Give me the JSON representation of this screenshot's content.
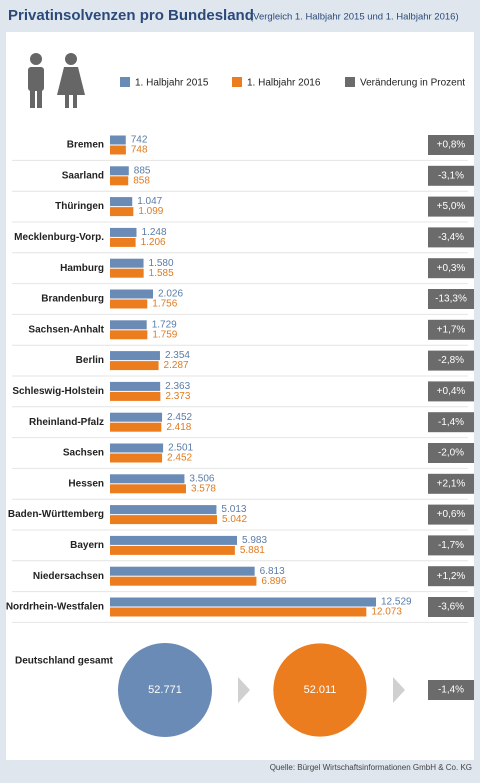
{
  "chart_data": {
    "type": "bar",
    "orientation": "horizontal",
    "title": "Privatinsolvenzen pro Bundesland",
    "subtitle": "(Vergleich 1. Halbjahr 2015 und 1. Halbjahr 2016)",
    "categories": [
      "Bremen",
      "Saarland",
      "Thüringen",
      "Mecklenburg-Vorp.",
      "Hamburg",
      "Brandenburg",
      "Sachsen-Anhalt",
      "Berlin",
      "Schleswig-Holstein",
      "Rheinland-Pfalz",
      "Sachsen",
      "Hessen",
      "Baden-Württemberg",
      "Bayern",
      "Niedersachsen",
      "Nordrhein-Westfalen"
    ],
    "series": [
      {
        "name": "1. Halbjahr 2015",
        "color": "#6a8bb5",
        "values": [
          742,
          885,
          1047,
          1248,
          1580,
          2026,
          1729,
          2354,
          2363,
          2452,
          2501,
          3506,
          5013,
          5983,
          6813,
          12529
        ],
        "value_labels": [
          "742",
          "885",
          "1.047",
          "1.248",
          "1.580",
          "2.026",
          "1.729",
          "2.354",
          "2.363",
          "2.452",
          "2.501",
          "3.506",
          "5.013",
          "5.983",
          "6.813",
          "12.529"
        ]
      },
      {
        "name": "1. Halbjahr 2016",
        "color": "#ec7d1e",
        "values": [
          748,
          858,
          1099,
          1206,
          1585,
          1756,
          1759,
          2287,
          2373,
          2418,
          2452,
          3578,
          5042,
          5881,
          6896,
          12073
        ],
        "value_labels": [
          "748",
          "858",
          "1.099",
          "1.206",
          "1.585",
          "1.756",
          "1.759",
          "2.287",
          "2.373",
          "2.418",
          "2.452",
          "3.578",
          "5.042",
          "5.881",
          "6.896",
          "12.073"
        ]
      }
    ],
    "change": {
      "name": "Veränderung in Prozent",
      "color": "#6b6b6b",
      "values": [
        0.8,
        -3.1,
        5.0,
        -3.4,
        0.3,
        -13.3,
        1.7,
        -2.8,
        0.4,
        -1.4,
        -2.0,
        2.1,
        0.6,
        -1.7,
        1.2,
        -3.6
      ],
      "value_labels": [
        "+0,8%",
        "-3,1%",
        "+5,0%",
        "-3,4%",
        "+0,3%",
        "-13,3%",
        "+1,7%",
        "-2,8%",
        "+0,4%",
        "-1,4%",
        "-2,0%",
        "+2,1%",
        "+0,6%",
        "-1,7%",
        "+1,2%",
        "-3,6%"
      ]
    },
    "total": {
      "label": "Deutschland gesamt",
      "values": [
        52771,
        52011
      ],
      "value_labels": [
        "52.771",
        "52.011"
      ],
      "change": -1.4,
      "change_label": "-1,4%"
    },
    "source": "Quelle: Bürgel Wirtschaftsinformationen GmbH & Co. KG"
  }
}
